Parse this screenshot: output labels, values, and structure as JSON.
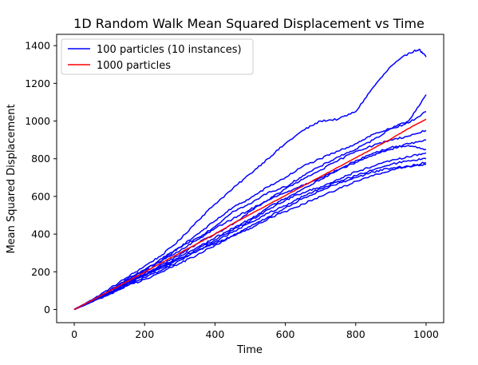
{
  "chart_data": {
    "type": "line",
    "title": "1D Random Walk Mean Squared Displacement vs Time",
    "xlabel": "Time",
    "ylabel": "Mean Squared Displacement",
    "xlim": [
      -50,
      1050
    ],
    "ylim": [
      -70,
      1460
    ],
    "xticks": [
      "0",
      "200",
      "400",
      "600",
      "800",
      "1000"
    ],
    "yticks": [
      "0",
      "200",
      "400",
      "600",
      "800",
      "1000",
      "1200",
      "1400"
    ],
    "grid": false,
    "legend_position": "top-left",
    "legend": [
      {
        "label": "100 particles (10 instances)",
        "color": "#0000ff"
      },
      {
        "label": "1000 particles",
        "color": "#ff0000"
      }
    ],
    "series": [
      {
        "group": "100 particles (10 instances)",
        "color": "#0000ff",
        "x": [
          0,
          50,
          100,
          150,
          200,
          250,
          300,
          350,
          400,
          450,
          500,
          550,
          600,
          650,
          700,
          750,
          800,
          850,
          900,
          950,
          980,
          1000
        ],
        "y": [
          0,
          50,
          110,
          170,
          230,
          290,
          370,
          470,
          560,
          640,
          720,
          800,
          880,
          950,
          1000,
          1010,
          1050,
          1180,
          1290,
          1360,
          1380,
          1340
        ]
      },
      {
        "group": "100 particles (10 instances)",
        "color": "#0000ff",
        "x": [
          0,
          50,
          100,
          150,
          200,
          250,
          300,
          350,
          400,
          450,
          500,
          550,
          600,
          650,
          700,
          750,
          800,
          850,
          900,
          950,
          1000
        ],
        "y": [
          0,
          45,
          95,
          155,
          210,
          270,
          330,
          400,
          470,
          540,
          590,
          650,
          700,
          760,
          800,
          840,
          880,
          930,
          960,
          1000,
          1140
        ]
      },
      {
        "group": "100 particles (10 instances)",
        "color": "#0000ff",
        "x": [
          0,
          50,
          100,
          150,
          200,
          250,
          300,
          350,
          400,
          450,
          500,
          550,
          600,
          650,
          700,
          750,
          800,
          850,
          900,
          950,
          1000
        ],
        "y": [
          0,
          50,
          100,
          160,
          210,
          260,
          330,
          380,
          440,
          520,
          560,
          620,
          650,
          710,
          760,
          810,
          850,
          900,
          960,
          990,
          1050
        ]
      },
      {
        "group": "100 particles (10 instances)",
        "color": "#0000ff",
        "x": [
          0,
          50,
          100,
          150,
          200,
          250,
          300,
          350,
          400,
          450,
          500,
          550,
          600,
          650,
          700,
          750,
          800,
          850,
          900,
          950,
          1000
        ],
        "y": [
          0,
          45,
          95,
          150,
          200,
          260,
          310,
          370,
          430,
          480,
          530,
          580,
          640,
          690,
          740,
          790,
          840,
          870,
          900,
          920,
          950
        ]
      },
      {
        "group": "100 particles (10 instances)",
        "color": "#0000ff",
        "x": [
          0,
          50,
          100,
          150,
          200,
          250,
          300,
          350,
          400,
          450,
          500,
          550,
          600,
          650,
          700,
          750,
          800,
          850,
          900,
          950,
          1000
        ],
        "y": [
          0,
          50,
          100,
          145,
          190,
          240,
          290,
          350,
          400,
          450,
          520,
          580,
          620,
          660,
          700,
          740,
          780,
          820,
          850,
          880,
          900
        ]
      },
      {
        "group": "100 particles (10 instances)",
        "color": "#0000ff",
        "x": [
          0,
          50,
          100,
          150,
          200,
          250,
          300,
          350,
          400,
          450,
          500,
          550,
          600,
          650,
          700,
          750,
          800,
          850,
          900,
          950,
          1000
        ],
        "y": [
          0,
          40,
          90,
          140,
          185,
          230,
          280,
          330,
          380,
          430,
          480,
          540,
          590,
          640,
          690,
          740,
          790,
          830,
          860,
          870,
          850
        ]
      },
      {
        "group": "100 particles (10 instances)",
        "color": "#0000ff",
        "x": [
          0,
          50,
          100,
          150,
          200,
          250,
          300,
          350,
          400,
          450,
          500,
          550,
          600,
          650,
          700,
          750,
          800,
          850,
          900,
          950,
          1000
        ],
        "y": [
          0,
          45,
          90,
          135,
          180,
          220,
          270,
          320,
          370,
          420,
          470,
          530,
          580,
          620,
          650,
          690,
          730,
          760,
          790,
          810,
          830
        ]
      },
      {
        "group": "100 particles (10 instances)",
        "color": "#0000ff",
        "x": [
          0,
          50,
          100,
          150,
          200,
          250,
          300,
          350,
          400,
          450,
          500,
          550,
          600,
          650,
          700,
          750,
          800,
          850,
          900,
          950,
          1000
        ],
        "y": [
          0,
          40,
          85,
          130,
          170,
          210,
          260,
          310,
          360,
          410,
          460,
          510,
          550,
          600,
          640,
          680,
          710,
          740,
          770,
          790,
          800
        ]
      },
      {
        "group": "100 particles (10 instances)",
        "color": "#0000ff",
        "x": [
          0,
          50,
          100,
          150,
          200,
          250,
          300,
          350,
          400,
          450,
          500,
          550,
          600,
          650,
          700,
          750,
          800,
          850,
          900,
          950,
          1000
        ],
        "y": [
          0,
          45,
          90,
          140,
          185,
          230,
          270,
          310,
          350,
          390,
          430,
          480,
          520,
          560,
          600,
          640,
          680,
          710,
          740,
          760,
          780
        ]
      },
      {
        "group": "100 particles (10 instances)",
        "color": "#0000ff",
        "x": [
          0,
          50,
          100,
          150,
          200,
          250,
          300,
          350,
          400,
          450,
          500,
          550,
          600,
          650,
          700,
          750,
          800,
          850,
          900,
          950,
          1000
        ],
        "y": [
          0,
          40,
          80,
          125,
          160,
          200,
          245,
          290,
          340,
          390,
          440,
          490,
          540,
          590,
          630,
          670,
          700,
          730,
          750,
          760,
          770
        ]
      },
      {
        "name": "1000 particles",
        "color": "#ff0000",
        "x": [
          0,
          50,
          100,
          150,
          200,
          250,
          300,
          350,
          400,
          450,
          500,
          550,
          600,
          650,
          700,
          750,
          800,
          850,
          900,
          950,
          1000
        ],
        "y": [
          0,
          48,
          98,
          148,
          198,
          250,
          300,
          350,
          400,
          455,
          505,
          555,
          605,
          655,
          705,
          755,
          805,
          855,
          905,
          960,
          1010
        ]
      }
    ]
  }
}
